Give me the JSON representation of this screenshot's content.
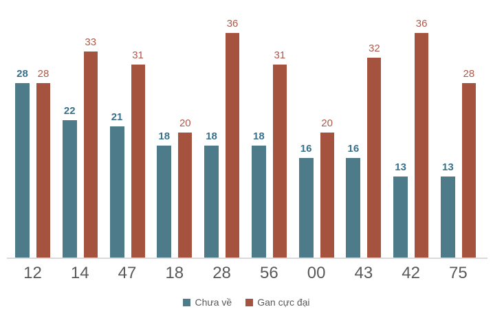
{
  "chart_data": {
    "type": "bar",
    "title": "",
    "xlabel": "",
    "ylabel": "",
    "categories": [
      "12",
      "14",
      "47",
      "18",
      "28",
      "56",
      "00",
      "43",
      "42",
      "75"
    ],
    "series": [
      {
        "name": "Chưa về",
        "color": "#4d7b8a",
        "label_color": "#36708a",
        "values": [
          28,
          22,
          21,
          18,
          18,
          18,
          16,
          16,
          13,
          13
        ]
      },
      {
        "name": "Gan cực đại",
        "color": "#a5523e",
        "label_color": "#ad5849",
        "values": [
          28,
          33,
          31,
          20,
          36,
          31,
          20,
          32,
          36,
          28
        ]
      }
    ],
    "ylim": [
      0,
      36
    ],
    "grid": false,
    "data_labels": true,
    "legend_position": "bottom"
  },
  "style": {
    "axis_line_color": "#d9d9d9",
    "category_label_color": "#595959",
    "legend_text_color": "#595959",
    "background": "#ffffff"
  }
}
